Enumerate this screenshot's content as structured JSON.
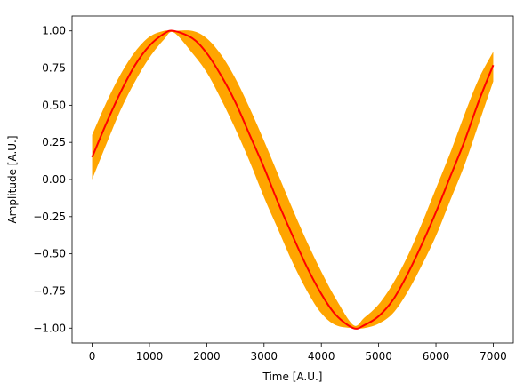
{
  "chart_data": {
    "type": "line",
    "title": "",
    "xlabel": "Time [A.U.]",
    "ylabel": "Amplitude [A.U.]",
    "xlim": [
      -350,
      7350
    ],
    "ylim": [
      -1.1,
      1.1
    ],
    "xticks": [
      0,
      1000,
      2000,
      3000,
      4000,
      5000,
      6000,
      7000
    ],
    "xtick_labels": [
      "0",
      "1000",
      "2000",
      "3000",
      "4000",
      "5000",
      "6000",
      "7000"
    ],
    "yticks": [
      -1.0,
      -0.75,
      -0.5,
      -0.25,
      0.0,
      0.25,
      0.5,
      0.75,
      1.0
    ],
    "ytick_labels": [
      "−1.00",
      "−0.75",
      "−0.50",
      "−0.25",
      "0.00",
      "0.25",
      "0.50",
      "0.75",
      "1.00"
    ],
    "grid": false,
    "series": [
      {
        "role": "center-line",
        "color": "#ff0000",
        "x": [
          0,
          250,
          500,
          750,
          1000,
          1250,
          1420,
          1750,
          2000,
          2250,
          2500,
          2750,
          3000,
          3250,
          3500,
          3750,
          4000,
          4250,
          4560,
          4750,
          5000,
          5250,
          5500,
          5750,
          6000,
          6250,
          6500,
          6750,
          7000
        ],
        "y": [
          0.15,
          0.38,
          0.59,
          0.77,
          0.9,
          0.98,
          1.0,
          0.95,
          0.85,
          0.7,
          0.52,
          0.3,
          0.08,
          -0.16,
          -0.38,
          -0.59,
          -0.77,
          -0.91,
          -1.0,
          -0.98,
          -0.92,
          -0.81,
          -0.64,
          -0.44,
          -0.22,
          0.02,
          0.26,
          0.53,
          0.77
        ]
      },
      {
        "role": "band-upper",
        "color": "#ffa500",
        "x": [
          0,
          250,
          500,
          750,
          1000,
          1250,
          1420,
          1750,
          2000,
          2250,
          2500,
          2750,
          3000,
          3250,
          3500,
          3750,
          4000,
          4250,
          4560,
          4750,
          5000,
          5250,
          5500,
          5750,
          6000,
          6250,
          6500,
          6750,
          7000
        ],
        "y": [
          0.3,
          0.52,
          0.71,
          0.86,
          0.96,
          1.0,
          1.0,
          1.0,
          0.95,
          0.84,
          0.68,
          0.48,
          0.26,
          0.03,
          -0.2,
          -0.42,
          -0.62,
          -0.8,
          -0.98,
          -0.93,
          -0.84,
          -0.7,
          -0.52,
          -0.3,
          -0.06,
          0.18,
          0.44,
          0.68,
          0.86
        ]
      },
      {
        "role": "band-lower",
        "color": "#ffa500",
        "x": [
          0,
          250,
          500,
          750,
          1000,
          1250,
          1420,
          1750,
          2000,
          2250,
          2500,
          2750,
          3000,
          3250,
          3500,
          3750,
          4000,
          4250,
          4560,
          4750,
          5000,
          5250,
          5500,
          5750,
          6000,
          6250,
          6500,
          6750,
          7000
        ],
        "y": [
          0.0,
          0.24,
          0.47,
          0.66,
          0.82,
          0.94,
          0.99,
          0.85,
          0.72,
          0.54,
          0.34,
          0.12,
          -0.12,
          -0.34,
          -0.56,
          -0.75,
          -0.9,
          -0.98,
          -1.0,
          -1.0,
          -0.97,
          -0.9,
          -0.76,
          -0.58,
          -0.38,
          -0.14,
          0.1,
          0.38,
          0.66
        ]
      }
    ]
  }
}
